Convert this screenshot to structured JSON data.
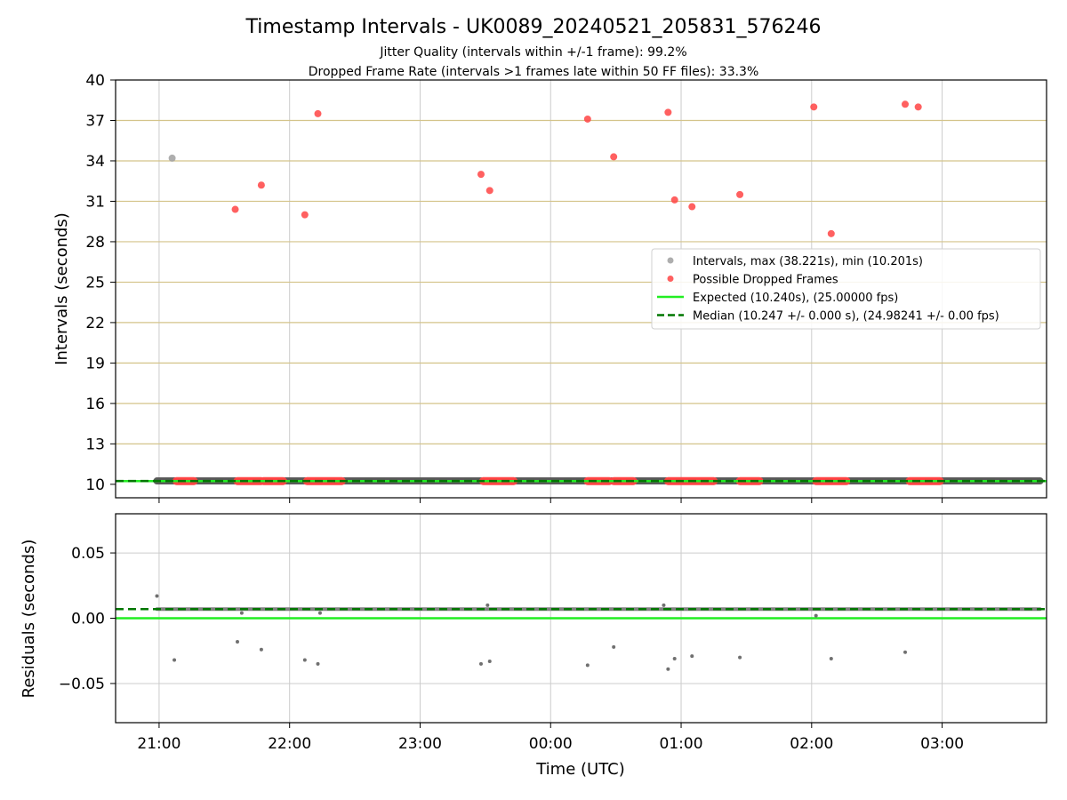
{
  "figure": {
    "title": "Timestamp Intervals - UK0089_20240521_205831_576246",
    "subtitle1": "Jitter Quality (intervals within +/-1 frame): 99.2%",
    "subtitle2": "Dropped Frame Rate (intervals >1 frames late within 50 FF files): 33.3%"
  },
  "colors": {
    "intervals": "#a0a0a0",
    "dropped": "#ff4444",
    "expected": "#22ee22",
    "median": "#007700",
    "band_grid": "#d4c48a",
    "grid": "#cccccc",
    "residuals": "#707070"
  },
  "chart_data": [
    {
      "type": "scatter",
      "panel": "top",
      "xlabel": "",
      "ylabel": "Intervals (seconds)",
      "x_range": [
        "20:40",
        "03:48"
      ],
      "ylim": [
        9,
        40
      ],
      "yticks": [
        "10",
        "13",
        "16",
        "19",
        "22",
        "25",
        "28",
        "31",
        "34",
        "37",
        "40"
      ],
      "grid": true,
      "legend_position": "center-right",
      "series": [
        {
          "name": "Intervals, max (38.221s), min (10.201s)",
          "kind": "scatter",
          "color": "#a0a0a0",
          "segment": {
            "x_start": "20:59",
            "x_end": "03:45",
            "y": 10.25
          },
          "points": [
            {
              "x": "21:06",
              "y": 34.2
            }
          ]
        },
        {
          "name": "Possible Dropped Frames",
          "kind": "scatter",
          "color": "#ff4444",
          "points": [
            {
              "x": "21:35",
              "y": 30.4
            },
            {
              "x": "21:47",
              "y": 32.2
            },
            {
              "x": "22:07",
              "y": 30.0
            },
            {
              "x": "22:13",
              "y": 37.5
            },
            {
              "x": "23:28",
              "y": 33.0
            },
            {
              "x": "23:32",
              "y": 31.8
            },
            {
              "x": "00:17",
              "y": 37.1
            },
            {
              "x": "00:29",
              "y": 34.3
            },
            {
              "x": "00:54",
              "y": 37.6
            },
            {
              "x": "00:57",
              "y": 31.1
            },
            {
              "x": "01:05",
              "y": 30.6
            },
            {
              "x": "01:27",
              "y": 31.5
            },
            {
              "x": "02:01",
              "y": 38.0
            },
            {
              "x": "02:09",
              "y": 28.6
            },
            {
              "x": "02:43",
              "y": 38.2
            },
            {
              "x": "02:49",
              "y": 38.0
            }
          ],
          "baseline_runs": [
            {
              "x_start": "21:08",
              "x_end": "21:16",
              "y": 10.24
            },
            {
              "x_start": "21:36",
              "x_end": "21:47",
              "y": 10.24
            },
            {
              "x_start": "21:48",
              "x_end": "21:57",
              "y": 10.24
            },
            {
              "x_start": "22:08",
              "x_end": "22:24",
              "y": 10.24
            },
            {
              "x_start": "23:29",
              "x_end": "23:43",
              "y": 10.24
            },
            {
              "x_start": "00:17",
              "x_end": "00:27",
              "y": 10.24
            },
            {
              "x_start": "00:29",
              "x_end": "00:38",
              "y": 10.24
            },
            {
              "x_start": "00:54",
              "x_end": "01:15",
              "y": 10.24
            },
            {
              "x_start": "01:27",
              "x_end": "01:36",
              "y": 10.24
            },
            {
              "x_start": "02:02",
              "x_end": "02:16",
              "y": 10.24
            },
            {
              "x_start": "02:45",
              "x_end": "02:59",
              "y": 10.24
            }
          ]
        },
        {
          "name": "Expected (10.240s), (25.00000 fps)",
          "kind": "hline",
          "y": 10.24,
          "color": "#22ee22",
          "style": "solid"
        },
        {
          "name": "Median (10.247 +/- 0.000 s), (24.98241 +/- 0.00 fps)",
          "kind": "hline",
          "y": 10.247,
          "color": "#007700",
          "style": "dashed"
        }
      ]
    },
    {
      "type": "scatter",
      "panel": "bottom",
      "xlabel": "Time (UTC)",
      "ylabel": "Residuals (seconds)",
      "x_range": [
        "20:40",
        "03:48"
      ],
      "xticks": [
        "21:00",
        "22:00",
        "23:00",
        "00:00",
        "01:00",
        "02:00",
        "03:00"
      ],
      "ylim": [
        -0.08,
        0.08
      ],
      "yticks": [
        "−0.05",
        "0.00",
        "0.05"
      ],
      "grid": true,
      "series": [
        {
          "name": "Residuals",
          "kind": "scatter",
          "color": "#707070",
          "band": {
            "x_start": "20:59",
            "x_end": "03:45",
            "y": 0.007
          },
          "points": [
            {
              "x": "20:59",
              "y": 0.017
            },
            {
              "x": "21:07",
              "y": -0.032
            },
            {
              "x": "21:36",
              "y": -0.018
            },
            {
              "x": "21:47",
              "y": -0.024
            },
            {
              "x": "22:07",
              "y": -0.032
            },
            {
              "x": "22:13",
              "y": -0.035
            },
            {
              "x": "23:28",
              "y": -0.035
            },
            {
              "x": "23:32",
              "y": -0.033
            },
            {
              "x": "00:17",
              "y": -0.036
            },
            {
              "x": "00:29",
              "y": -0.022
            },
            {
              "x": "00:54",
              "y": -0.039
            },
            {
              "x": "00:57",
              "y": -0.031
            },
            {
              "x": "01:05",
              "y": -0.029
            },
            {
              "x": "01:27",
              "y": -0.03
            },
            {
              "x": "02:09",
              "y": -0.031
            },
            {
              "x": "02:43",
              "y": -0.026
            },
            {
              "x": "02:02",
              "y": 0.002
            },
            {
              "x": "22:14",
              "y": 0.004
            },
            {
              "x": "21:38",
              "y": 0.004
            },
            {
              "x": "23:31",
              "y": 0.01
            },
            {
              "x": "00:52",
              "y": 0.01
            }
          ]
        },
        {
          "name": "Expected",
          "kind": "hline",
          "y": 0.0,
          "color": "#22ee22",
          "style": "solid"
        },
        {
          "name": "Median",
          "kind": "hline",
          "y": 0.007,
          "color": "#007700",
          "style": "dashed"
        }
      ]
    }
  ]
}
